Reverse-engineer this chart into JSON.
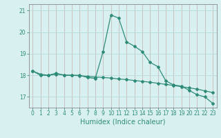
{
  "x": [
    0,
    1,
    2,
    3,
    4,
    5,
    6,
    7,
    8,
    9,
    10,
    11,
    12,
    13,
    14,
    15,
    16,
    17,
    18,
    19,
    20,
    21,
    22,
    23
  ],
  "curve_spike": [
    18.2,
    18.0,
    18.0,
    18.1,
    18.0,
    18.0,
    18.0,
    17.9,
    17.85,
    19.1,
    20.8,
    20.65,
    19.55,
    19.35,
    19.1,
    18.6,
    18.4,
    17.75,
    17.55,
    17.5,
    17.3,
    17.1,
    17.0,
    16.7
  ],
  "curve_smooth": [
    18.2,
    18.05,
    18.0,
    18.05,
    18.02,
    18.0,
    17.98,
    17.95,
    17.92,
    17.9,
    17.87,
    17.83,
    17.8,
    17.76,
    17.72,
    17.68,
    17.63,
    17.58,
    17.53,
    17.47,
    17.42,
    17.36,
    17.28,
    17.2
  ],
  "line_color": "#2e8b77",
  "bg_color": "#d8f0f0",
  "grid_color": "#b8dada",
  "ylim": [
    16.5,
    21.3
  ],
  "xlim": [
    -0.5,
    23.5
  ],
  "yticks": [
    17,
    18,
    19,
    20,
    21
  ],
  "xticks": [
    0,
    1,
    2,
    3,
    4,
    5,
    6,
    7,
    8,
    9,
    10,
    11,
    12,
    13,
    14,
    15,
    16,
    17,
    18,
    19,
    20,
    21,
    22,
    23
  ],
  "xlabel": "Humidex (Indice chaleur)",
  "xlabel_fontsize": 7,
  "tick_fontsize": 5.5,
  "lw": 0.9,
  "ms": 2.0
}
